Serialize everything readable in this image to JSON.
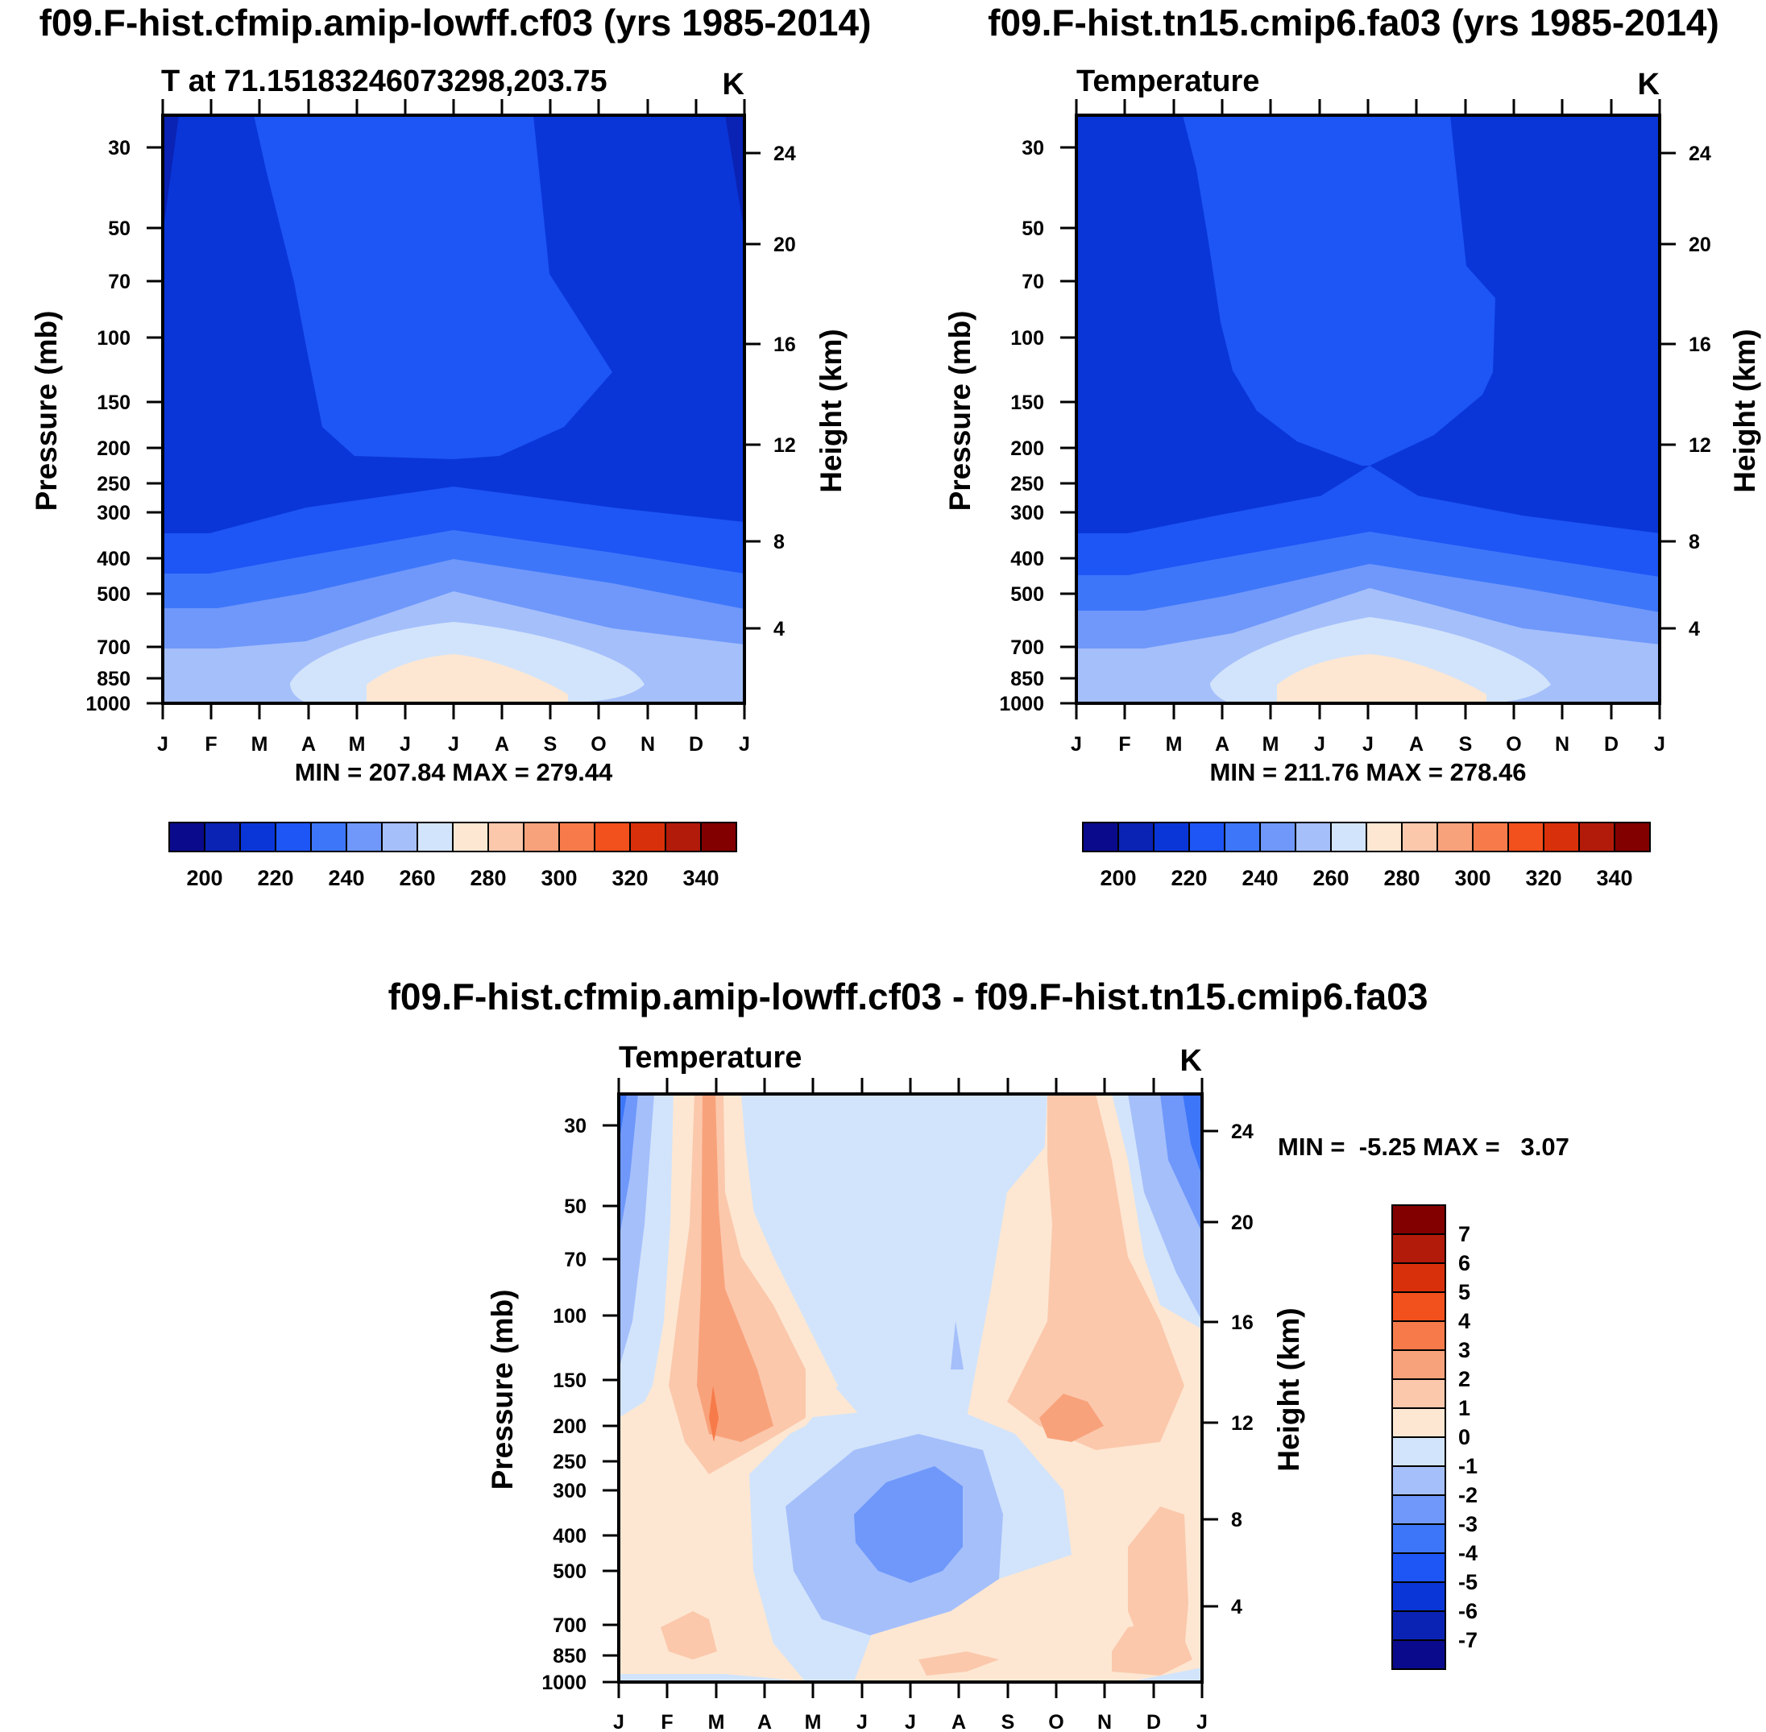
{
  "colors": {
    "ramp_bwr": [
      "#0a0a8c",
      "#0a23b4",
      "#0a36d8",
      "#1e55f5",
      "#3e76fa",
      "#6f98fa",
      "#a5bffb",
      "#d2e4fb",
      "#fde7d2",
      "#fbc8ac",
      "#f8a27b",
      "#f77b4a",
      "#f2501c",
      "#d8300a",
      "#b21a0a",
      "#820000"
    ],
    "outline": "#000000"
  },
  "chart_data": [
    {
      "type": "heatmap",
      "title": "f09.F-hist.cfmip.amip-lowff.cf03 (yrs 1985-2014)",
      "subtitle_left": "T at 71.15183246073298,203.75",
      "subtitle_right": "K",
      "xlabel": "",
      "ylabel": "Pressure (mb)",
      "ylabel_right": "Height (km)",
      "x_ticks": [
        "J",
        "F",
        "M",
        "A",
        "M",
        "J",
        "J",
        "A",
        "S",
        "O",
        "N",
        "D",
        "J"
      ],
      "y_ticks": [
        "30",
        "50",
        "70",
        "100",
        "150",
        "200",
        "250",
        "300",
        "400",
        "500",
        "700",
        "850",
        "1000"
      ],
      "y_right_ticks": [
        "24",
        "20",
        "16",
        "12",
        "8",
        "4"
      ],
      "min_max": "MIN = 207.84 MAX = 279.44",
      "colorbar_labels": [
        "200",
        "220",
        "240",
        "260",
        "280",
        "300",
        "320",
        "340"
      ],
      "range": [
        207.84,
        279.44
      ]
    },
    {
      "type": "heatmap",
      "title": "f09.F-hist.tn15.cmip6.fa03 (yrs 1985-2014)",
      "subtitle_left": "Temperature",
      "subtitle_right": "K",
      "ylabel": "Pressure (mb)",
      "ylabel_right": "Height (km)",
      "x_ticks": [
        "J",
        "F",
        "M",
        "A",
        "M",
        "J",
        "J",
        "A",
        "S",
        "O",
        "N",
        "D",
        "J"
      ],
      "y_ticks": [
        "30",
        "50",
        "70",
        "100",
        "150",
        "200",
        "250",
        "300",
        "400",
        "500",
        "700",
        "850",
        "1000"
      ],
      "y_right_ticks": [
        "24",
        "20",
        "16",
        "12",
        "8",
        "4"
      ],
      "min_max": "MIN = 211.76 MAX = 278.46",
      "colorbar_labels": [
        "200",
        "220",
        "240",
        "260",
        "280",
        "300",
        "320",
        "340"
      ],
      "range": [
        211.76,
        278.46
      ]
    },
    {
      "type": "heatmap",
      "title": "f09.F-hist.cfmip.amip-lowff.cf03 - f09.F-hist.tn15.cmip6.fa03",
      "subtitle_left": "Temperature",
      "subtitle_right": "K",
      "ylabel": "Pressure (mb)",
      "ylabel_right": "Height (km)",
      "x_ticks": [
        "J",
        "F",
        "M",
        "A",
        "M",
        "J",
        "J",
        "A",
        "S",
        "O",
        "N",
        "D",
        "J"
      ],
      "y_ticks": [
        "30",
        "50",
        "70",
        "100",
        "150",
        "200",
        "250",
        "300",
        "400",
        "500",
        "700",
        "850",
        "1000"
      ],
      "y_right_ticks": [
        "24",
        "20",
        "16",
        "12",
        "8",
        "4"
      ],
      "min_max": "MIN =  -5.25 MAX =   3.07",
      "colorbar_labels": [
        "7",
        "6",
        "5",
        "4",
        "3",
        "2",
        "1",
        "0",
        "-1",
        "-2",
        "-3",
        "-4",
        "-5",
        "-6",
        "-7"
      ],
      "range": [
        -5.25,
        3.07
      ]
    }
  ]
}
